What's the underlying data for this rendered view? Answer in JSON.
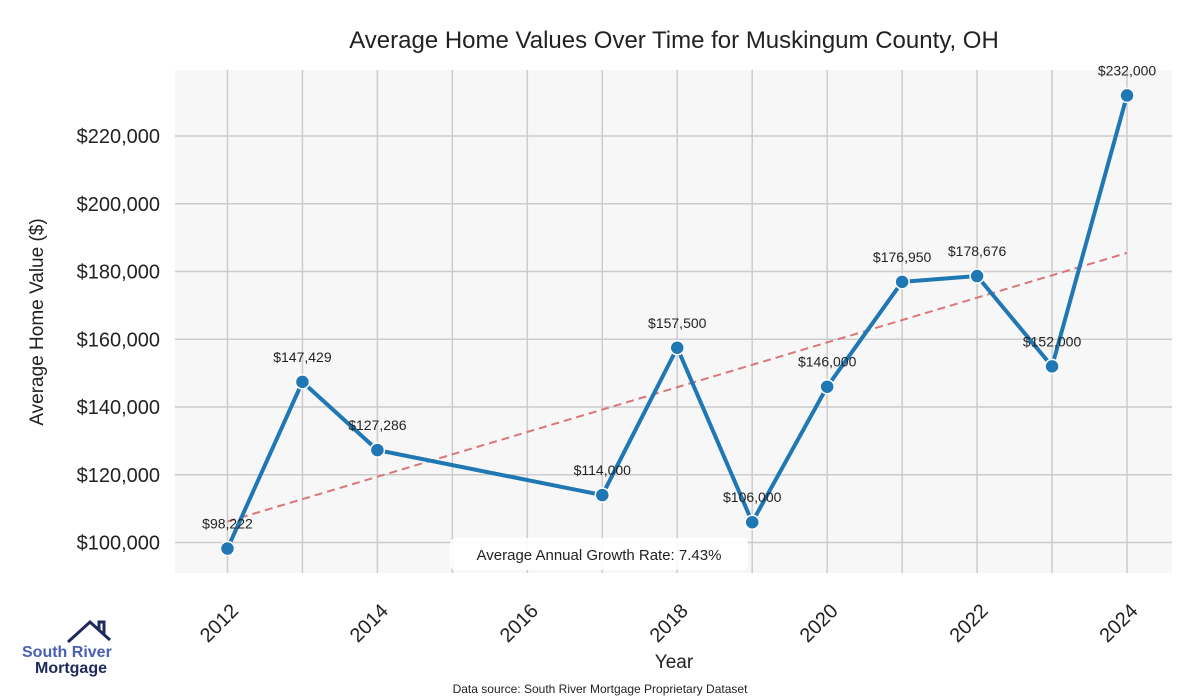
{
  "chart_data": {
    "type": "line",
    "title": "Average Home Values Over Time for Muskingum County, OH",
    "xlabel": "Year",
    "ylabel": "Average Home Value ($)",
    "x": [
      2012,
      2013,
      2014,
      2017,
      2018,
      2019,
      2020,
      2021,
      2022,
      2023,
      2024
    ],
    "values": [
      98222,
      147429,
      127286,
      114000,
      157500,
      106000,
      146000,
      176950,
      178676,
      152000,
      232000
    ],
    "data_labels": [
      "$98,222",
      "$147,429",
      "$127,286",
      "$114,000",
      "$157,500",
      "$106,000",
      "$146,000",
      "$176,950",
      "$178,676",
      "$152,000",
      "$232,000"
    ],
    "xticks": [
      2012,
      2014,
      2016,
      2018,
      2020,
      2022,
      2024
    ],
    "xtick_labels": [
      "2012",
      "2014",
      "2016",
      "2018",
      "2020",
      "2022",
      "2024"
    ],
    "yticks": [
      100000,
      120000,
      140000,
      160000,
      180000,
      200000,
      220000
    ],
    "ytick_labels": [
      "$100,000",
      "$120,000",
      "$140,000",
      "$160,000",
      "$180,000",
      "$200,000",
      "$220,000"
    ],
    "xlim": [
      2011.3,
      2024.6
    ],
    "ylim": [
      91000,
      239500
    ],
    "grid": true,
    "trend": {
      "x": [
        2012,
        2024
      ],
      "y": [
        106200,
        185500
      ],
      "style": "dashed"
    },
    "annotation": "Average Annual Growth Rate: 7.43%",
    "colors": {
      "line": "#1f77b4",
      "trend": "#d9777a",
      "background": "#f7f7f7",
      "grid": "#cccccc"
    }
  },
  "footer": {
    "source": "Data source: South River Mortgage Proprietary Dataset"
  },
  "logo": {
    "line1": "South River",
    "line2": "Mortgage"
  }
}
